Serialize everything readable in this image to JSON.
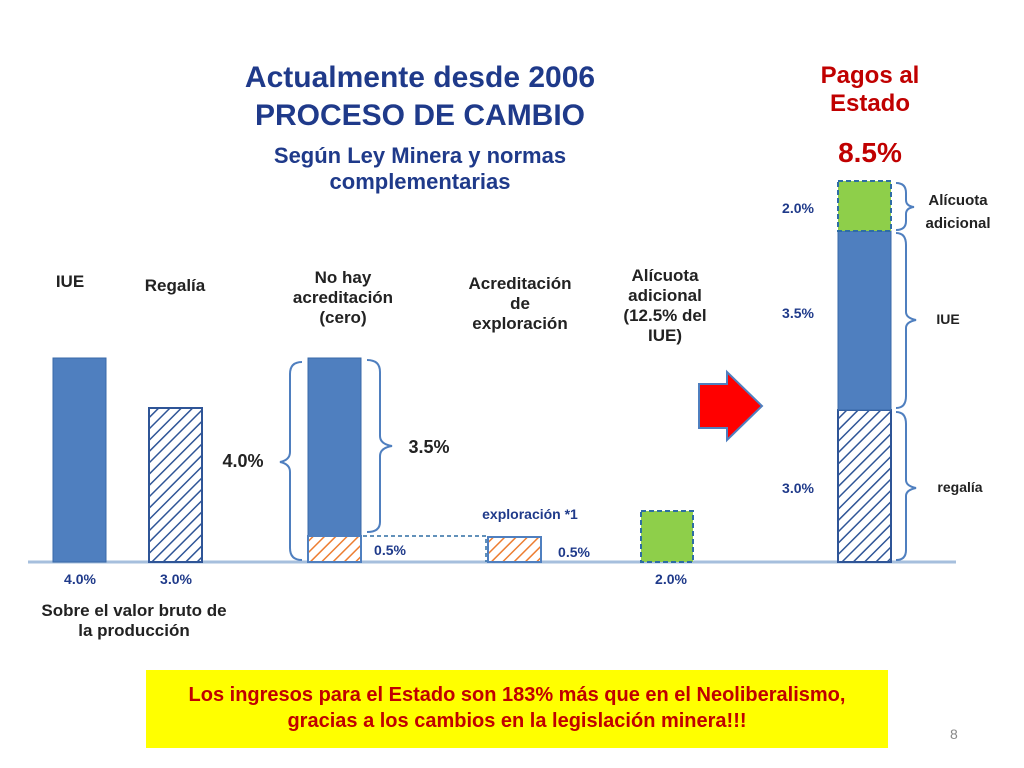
{
  "title": {
    "line1": "Actualmente desde 2006",
    "line2": "PROCESO DE CAMBIO",
    "subtitle1": "Según Ley Minera y normas",
    "subtitle2": "complementarias"
  },
  "right_header": {
    "line1": "Pagos al",
    "line2": "Estado",
    "total": "8.5%"
  },
  "groups": {
    "iue": "IUE",
    "regalia": "Regalía",
    "no_hay1": "No hay",
    "no_hay2": "acreditación",
    "no_hay3": "(cero)",
    "acred1": "Acreditación",
    "acred2": "de",
    "acred3": "exploración",
    "alic1": "Alícuota",
    "alic2": "adicional",
    "alic3": "(12.5% del",
    "alic4": "IUE)"
  },
  "values": {
    "iue": "4.0%",
    "regalia": "3.0%",
    "brace_left": "4.0%",
    "brace_right": "3.5%",
    "bottom_slice": "0.5%",
    "exploracion_label": "exploración *1",
    "exploracion_val": "0.5%",
    "alicuota_val": "2.0%"
  },
  "base_note": {
    "line1": "Sobre el valor bruto de",
    "line2": "la producción"
  },
  "stack": {
    "top_val": "2.0%",
    "mid_val": "3.5%",
    "bot_val": "3.0%",
    "top_label1": "Alícuota",
    "top_label2": "adicional",
    "mid_label": "IUE",
    "bot_label": "regalía"
  },
  "footer": {
    "line1": "Los ingresos para el Estado son 183%  más que en el Neoliberalismo,",
    "line2": "gracias a los cambios en la legislación minera!!!"
  },
  "page_number": "8",
  "chart_data": {
    "type": "bar",
    "categories": [
      "IUE",
      "Regalía",
      "No hay acreditación (cero)",
      "Acreditación de exploración",
      "Alícuota adicional (12.5% del IUE)",
      "Pagos al Estado"
    ],
    "series": [
      {
        "values": [
          4.0,
          0,
          3.5,
          0,
          0,
          3.5
        ]
      },
      {
        "values": [
          0,
          3.0,
          0,
          0,
          0,
          3.0
        ]
      },
      {
        "values": [
          0,
          0,
          0.5,
          0.5,
          0,
          0
        ]
      },
      {
        "values": [
          0,
          0,
          0,
          0,
          2.0,
          2.0
        ]
      }
    ],
    "total": 8.5,
    "unit": "%",
    "colors": {
      "iue": "#4f7fbf",
      "regalia_hatch": "#2f5597",
      "exploracion_hatch": "#ed7d31",
      "alicuota": "#8ecf4a",
      "arrow": "#ff0000",
      "brace": "#4f7fbf",
      "dashed": "#2e6da4"
    }
  }
}
